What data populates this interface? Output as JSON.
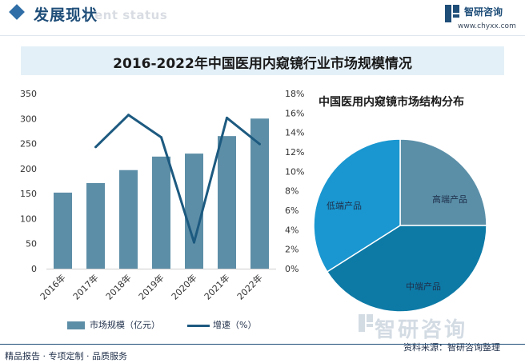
{
  "header": {
    "title": "发展现状",
    "ghost_text": "ent status",
    "brand_name": "智研咨询",
    "brand_url": "www.chyxx.com"
  },
  "watermark_text": "智研咨询",
  "colors": {
    "bar": "#5d8ea7",
    "line": "#1d5a80",
    "pie_high": "#5b8fa8",
    "pie_mid": "#0d7aa6",
    "pie_low": "#1a97d0",
    "brand": "#1f4e79"
  },
  "footer": {
    "left": "精品报告 · 专项定制 · 品质服务",
    "source": "资料来源：智研咨询整理"
  },
  "chart_data": [
    {
      "type": "bar",
      "title": "2016-2022年中国医用内窥镜行业市场规模情况",
      "categories": [
        "2016年",
        "2017年",
        "2018年",
        "2019年",
        "2020年",
        "2021年",
        "2022年"
      ],
      "series": [
        {
          "name": "市场规模（亿元）",
          "type": "bar",
          "axis": "left",
          "values": [
            152,
            171,
            197,
            224,
            230,
            265,
            300
          ]
        },
        {
          "name": "增速（%）",
          "type": "line",
          "axis": "right",
          "values": [
            null,
            12.5,
            15.8,
            13.5,
            2.7,
            15.5,
            12.8
          ]
        }
      ],
      "y_left": {
        "min": 0,
        "max": 350,
        "step": 50,
        "ticks": [
          "0",
          "50",
          "100",
          "150",
          "200",
          "250",
          "300",
          "350"
        ]
      },
      "y_right": {
        "min": 0,
        "max": 18,
        "step": 2,
        "ticks": [
          "0%",
          "2%",
          "4%",
          "6%",
          "8%",
          "10%",
          "12%",
          "14%",
          "16%",
          "18%"
        ]
      },
      "legend_position": "bottom",
      "grid": false
    },
    {
      "type": "pie",
      "title": "中国医用内窥镜市场结构分布",
      "slices": [
        {
          "label": "高端产品",
          "value": 25
        },
        {
          "label": "中端产品",
          "value": 41
        },
        {
          "label": "低端产品",
          "value": 34
        }
      ]
    }
  ]
}
